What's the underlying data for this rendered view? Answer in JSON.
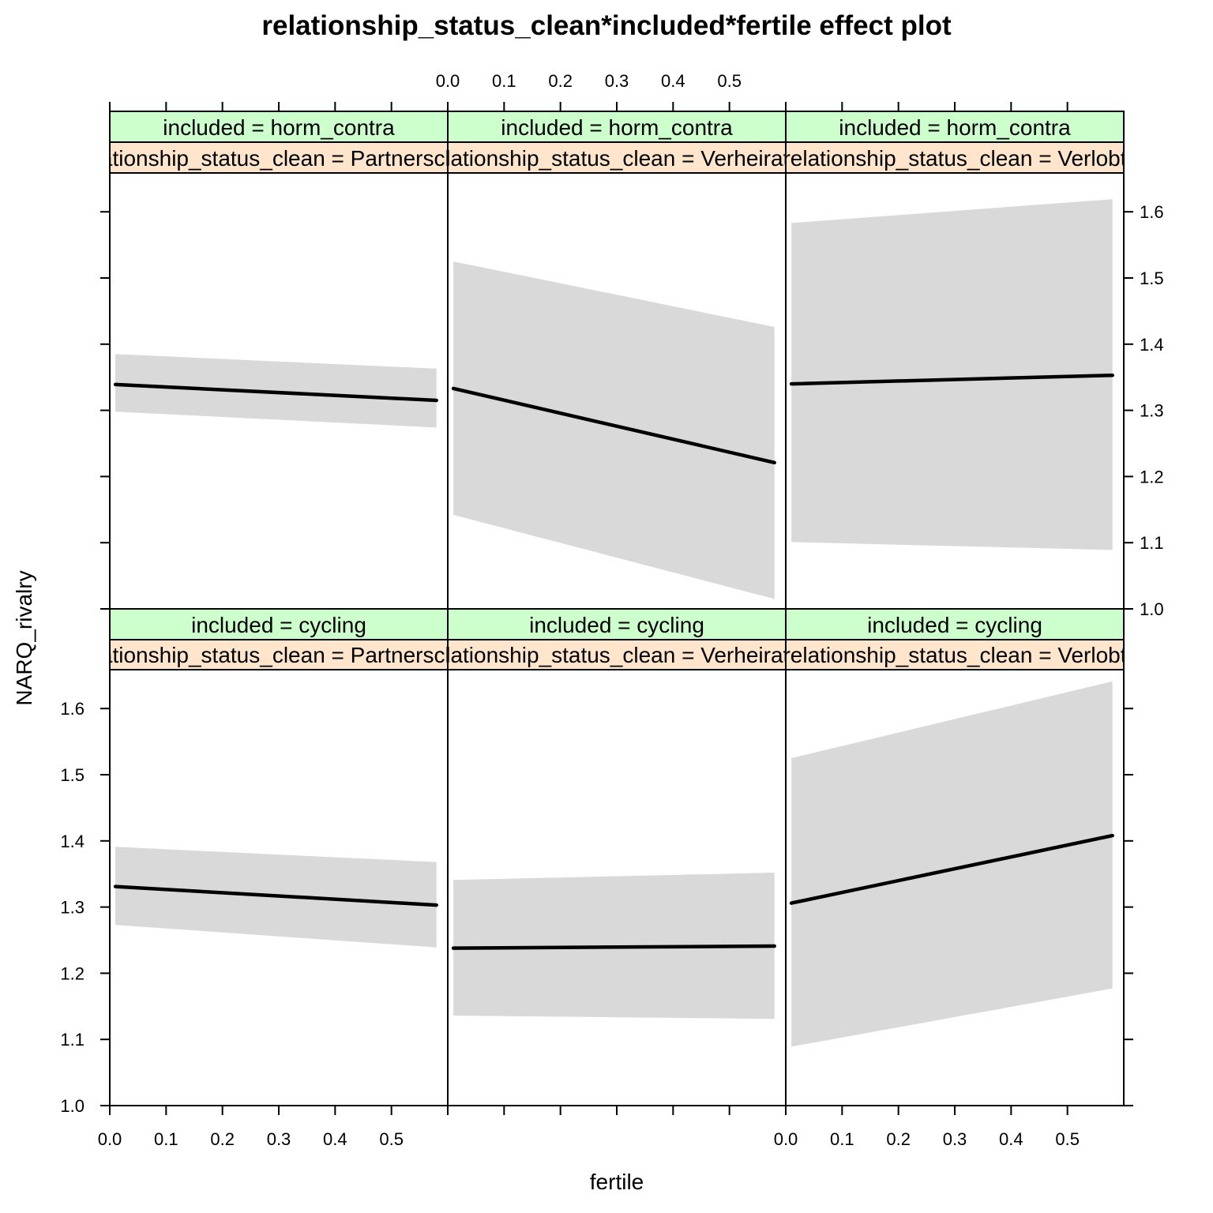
{
  "chart_data": {
    "type": "line",
    "title": "relationship_status_clean*included*fertile effect plot",
    "xlabel": "fertile",
    "ylabel": "NARQ_rivalry",
    "xlim": [
      0.0,
      0.6
    ],
    "ylim": [
      1.0,
      1.66
    ],
    "x_ticks": [
      "0.0",
      "0.1",
      "0.2",
      "0.3",
      "0.4",
      "0.5"
    ],
    "y_ticks": [
      "1.0",
      "1.1",
      "1.2",
      "1.3",
      "1.4",
      "1.5",
      "1.6"
    ],
    "line_color": "#000000",
    "band_color": "#d9d9d9",
    "strip_colors": {
      "included": "#ccffcc",
      "relationship_status_clean": "#ffe5cc"
    },
    "panels": [
      {
        "included_label": "included = horm_contra",
        "status_label": "relationship_status_clean = Partnerschaft",
        "x": [
          0.01,
          0.58
        ],
        "fit": [
          1.339,
          1.315
        ],
        "lower": [
          1.298,
          1.274
        ],
        "upper": [
          1.385,
          1.363
        ]
      },
      {
        "included_label": "included = horm_contra",
        "status_label": "relationship_status_clean = Verheiratet",
        "x": [
          0.01,
          0.58
        ],
        "fit": [
          1.333,
          1.221
        ],
        "lower": [
          1.142,
          1.015
        ],
        "upper": [
          1.525,
          1.426
        ]
      },
      {
        "included_label": "included = horm_contra",
        "status_label": "relationship_status_clean = Verlobt",
        "x": [
          0.01,
          0.58
        ],
        "fit": [
          1.34,
          1.353
        ],
        "lower": [
          1.101,
          1.089
        ],
        "upper": [
          1.583,
          1.619
        ]
      },
      {
        "included_label": "included = cycling",
        "status_label": "relationship_status_clean = Partnerschaft",
        "x": [
          0.01,
          0.58
        ],
        "fit": [
          1.331,
          1.303
        ],
        "lower": [
          1.273,
          1.239
        ],
        "upper": [
          1.391,
          1.368
        ]
      },
      {
        "included_label": "included = cycling",
        "status_label": "relationship_status_clean = Verheiratet",
        "x": [
          0.01,
          0.58
        ],
        "fit": [
          1.238,
          1.241
        ],
        "lower": [
          1.136,
          1.131
        ],
        "upper": [
          1.341,
          1.352
        ]
      },
      {
        "included_label": "included = cycling",
        "status_label": "relationship_status_clean = Verlobt",
        "x": [
          0.01,
          0.58
        ],
        "fit": [
          1.306,
          1.408
        ],
        "lower": [
          1.089,
          1.177
        ],
        "upper": [
          1.525,
          1.641
        ]
      }
    ]
  }
}
